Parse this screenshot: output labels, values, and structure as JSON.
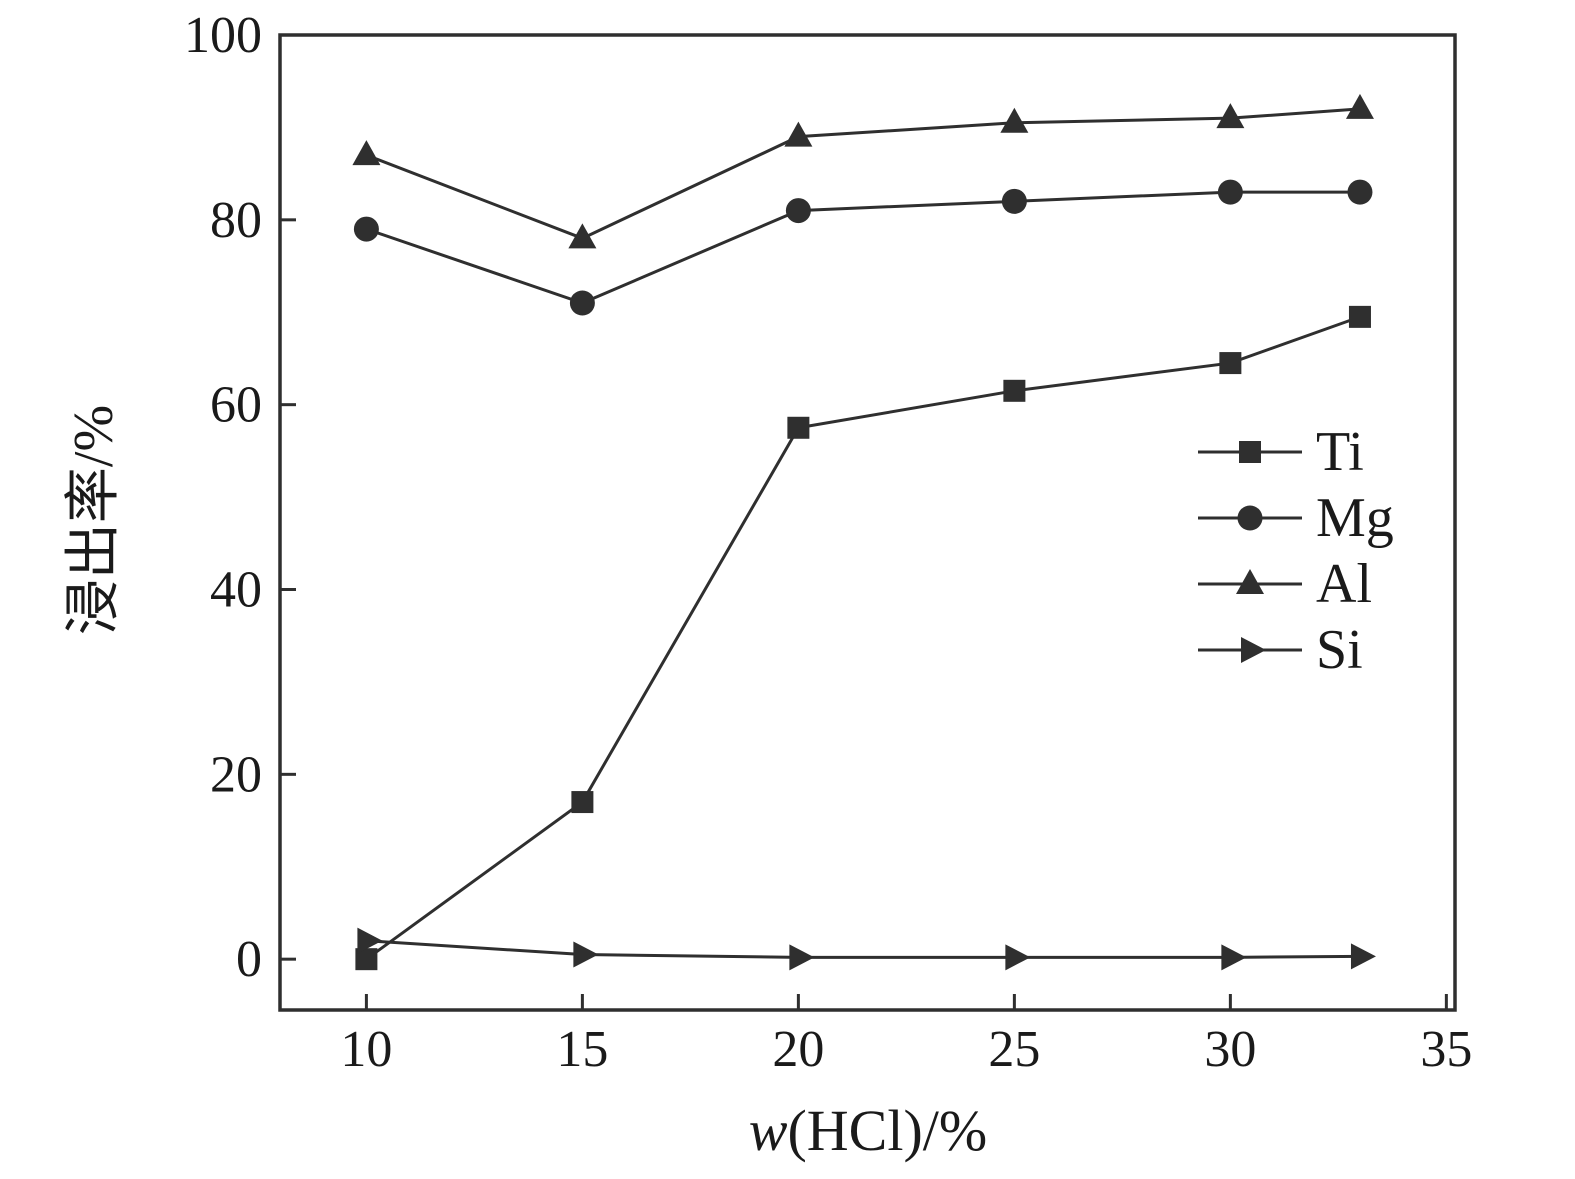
{
  "chart_data": {
    "type": "line",
    "title": "",
    "xlabel_prefix": "w",
    "xlabel_rest": "(HCl)/%",
    "ylabel": "浸出率/%",
    "x": [
      10,
      15,
      20,
      25,
      30,
      33
    ],
    "series": [
      {
        "name": "Ti",
        "marker": "square",
        "values": [
          0,
          17,
          57.5,
          61.5,
          64.5,
          69.5
        ]
      },
      {
        "name": "Mg",
        "marker": "circle",
        "values": [
          79,
          71,
          81,
          82,
          83,
          83
        ]
      },
      {
        "name": "Al",
        "marker": "triangle-up",
        "values": [
          87,
          78,
          89,
          90.5,
          91,
          92
        ]
      },
      {
        "name": "Si",
        "marker": "triangle-right",
        "values": [
          2,
          0.5,
          0.2,
          0.2,
          0.2,
          0.3
        ]
      }
    ],
    "xlim": [
      8,
      35.2
    ],
    "ylim": [
      -5.5,
      100
    ],
    "xticks": [
      10,
      15,
      20,
      25,
      30,
      35
    ],
    "yticks": [
      0,
      20,
      40,
      60,
      80,
      100
    ],
    "legend": [
      "Ti",
      "Mg",
      "Al",
      "Si"
    ],
    "legend_position": "right-middle",
    "grid": false,
    "line_color": "#2f2f2f",
    "background_color": "#ffffff"
  }
}
